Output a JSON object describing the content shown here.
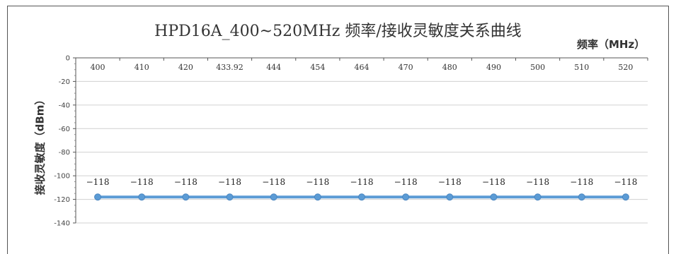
{
  "chart_data": {
    "type": "line",
    "title": "HPD16A_400~520MHz 频率/接收灵敏度关系曲线",
    "xlabel": "频率（MHz）",
    "ylabel": "接收灵敏度（dBm）",
    "categories": [
      "400",
      "410",
      "420",
      "433.92",
      "444",
      "454",
      "464",
      "470",
      "480",
      "490",
      "500",
      "510",
      "520"
    ],
    "series": [
      {
        "values": [
          -118,
          -118,
          -118,
          -118,
          -118,
          -118,
          -118,
          -118,
          -118,
          -118,
          -118,
          -118,
          -118
        ]
      }
    ],
    "data_labels": [
      "−118",
      "−118",
      "−118",
      "−118",
      "−118",
      "−118",
      "−118",
      "−118",
      "−118",
      "−118",
      "−118",
      "−118",
      "−118"
    ],
    "ylim": [
      -140,
      0
    ],
    "yticks": [
      0,
      -20,
      -40,
      -60,
      -80,
      -100,
      -120,
      -140
    ],
    "x_axis_position": "top",
    "grid": true,
    "line_color": "#5b9bd5",
    "grid_color": "#d0d0d0"
  }
}
